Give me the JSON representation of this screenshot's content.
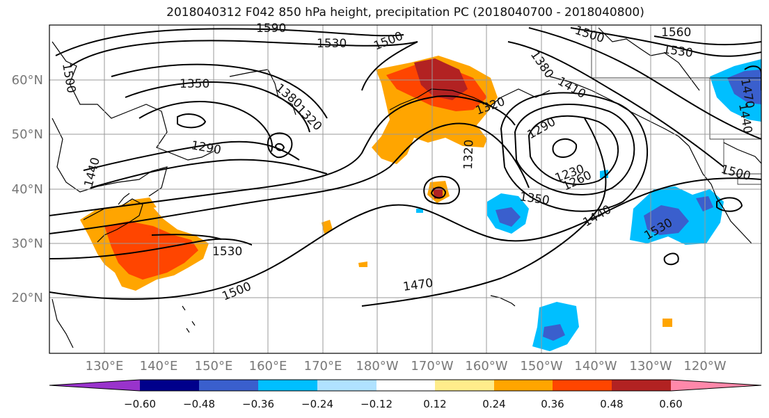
{
  "title": "2018040312 F042 850 hPa height, precipitation PC (2018040700 - 2018040800)",
  "lat_labels": [
    "60°N",
    "50°N",
    "40°N",
    "30°N",
    "20°N"
  ],
  "lon_labels": [
    "130°E",
    "140°E",
    "150°E",
    "160°E",
    "170°E",
    "180°W",
    "170°W",
    "160°W",
    "150°W",
    "140°W",
    "130°W",
    "120°W"
  ],
  "colorbar": {
    "colors": [
      "#9933cc",
      "#00008b",
      "#3a5fcd",
      "#00bfff",
      "#b0e2ff",
      "#ffffff",
      "#ffec8b",
      "#ffa500",
      "#ff4500",
      "#b22222",
      "#ff88aa"
    ],
    "tick_labels": [
      "−0.60",
      "−0.48",
      "−0.36",
      "−0.24",
      "−0.12",
      "0.12",
      "0.24",
      "0.36",
      "0.48",
      "0.60"
    ]
  },
  "contour_labels": [
    "1590",
    "1530",
    "1500",
    "1560",
    "1530",
    "1500",
    "1350",
    "1380",
    "1320",
    "1380",
    "1410",
    "1320",
    "1290",
    "1290",
    "1320",
    "1230",
    "1260",
    "1440",
    "1350",
    "1440",
    "1530",
    "1470",
    "1500",
    "1530",
    "1500",
    "1470",
    "1500",
    "1440"
  ]
}
